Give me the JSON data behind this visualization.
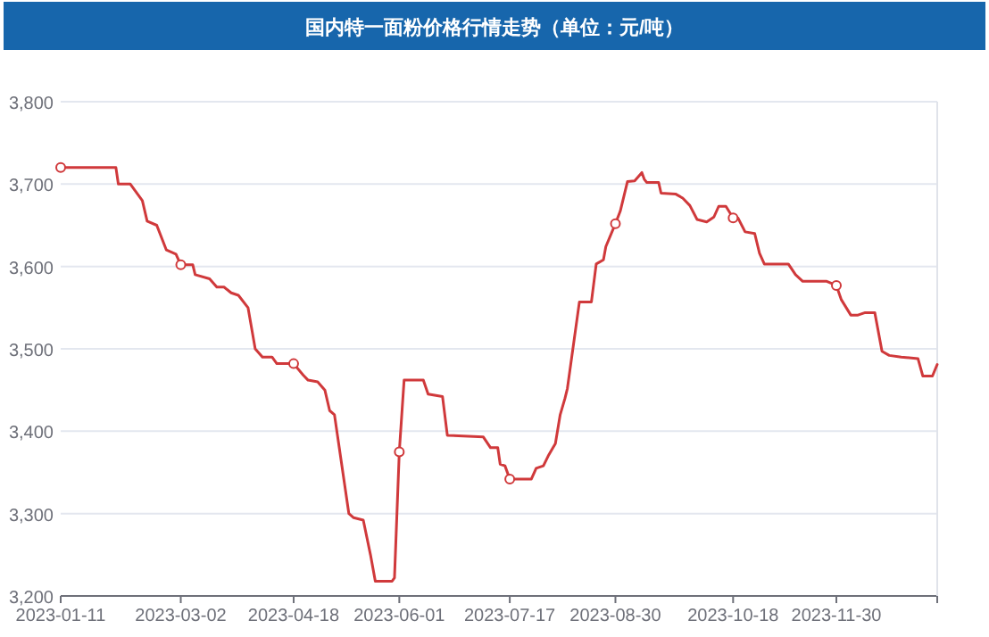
{
  "chart_data": {
    "type": "line",
    "title": "国内特一面粉价格行情走势（单位：元/吨）",
    "xlim": [
      "2023-01-11",
      "2024-01-11"
    ],
    "xticks": [
      "2023-01-11",
      "2023-03-02",
      "2023-04-18",
      "2023-06-01",
      "2023-07-17",
      "2023-08-30",
      "2023-10-18",
      "2023-11-30"
    ],
    "ylim": [
      3200,
      3800
    ],
    "yticks": [
      {
        "value": 3200,
        "label": "3,200"
      },
      {
        "value": 3300,
        "label": "3,300"
      },
      {
        "value": 3400,
        "label": "3,400"
      },
      {
        "value": 3500,
        "label": "3,500"
      },
      {
        "value": 3600,
        "label": "3,600"
      },
      {
        "value": 3700,
        "label": "3,700"
      },
      {
        "value": 3800,
        "label": "3,800"
      }
    ],
    "grid": "y",
    "series": [
      {
        "type": "line",
        "color": "#d0393b",
        "marker": "none",
        "x": [
          "2023-01-11",
          "2023-02-03",
          "2023-02-04",
          "2023-02-09",
          "2023-02-14",
          "2023-02-16",
          "2023-02-20",
          "2023-02-24",
          "2023-02-28",
          "2023-03-02",
          "2023-03-07",
          "2023-03-08",
          "2023-03-14",
          "2023-03-17",
          "2023-03-20",
          "2023-03-23",
          "2023-03-26",
          "2023-03-30",
          "2023-04-02",
          "2023-04-05",
          "2023-04-09",
          "2023-04-11",
          "2023-04-18",
          "2023-04-22",
          "2023-04-24",
          "2023-04-28",
          "2023-05-01",
          "2023-05-03",
          "2023-05-05",
          "2023-05-07",
          "2023-05-09",
          "2023-05-11",
          "2023-05-13",
          "2023-05-17",
          "2023-05-20",
          "2023-05-22",
          "2023-05-29",
          "2023-05-30",
          "2023-06-01",
          "2023-06-03",
          "2023-06-11",
          "2023-06-13",
          "2023-06-19",
          "2023-06-21",
          "2023-07-06",
          "2023-07-09",
          "2023-07-12",
          "2023-07-13",
          "2023-07-15",
          "2023-07-17",
          "2023-07-26",
          "2023-07-28",
          "2023-07-31",
          "2023-08-02",
          "2023-08-04",
          "2023-08-05",
          "2023-08-07",
          "2023-08-09",
          "2023-08-10",
          "2023-08-15",
          "2023-08-20",
          "2023-08-22",
          "2023-08-25",
          "2023-08-26",
          "2023-08-30",
          "2023-09-01",
          "2023-09-04",
          "2023-09-07",
          "2023-09-10",
          "2023-09-11",
          "2023-09-12",
          "2023-09-17",
          "2023-09-18",
          "2023-09-24",
          "2023-09-27",
          "2023-09-30",
          "2023-10-03",
          "2023-10-07",
          "2023-10-10",
          "2023-10-12",
          "2023-10-15",
          "2023-10-18",
          "2023-10-20",
          "2023-10-23",
          "2023-10-27",
          "2023-10-29",
          "2023-10-31",
          "2023-11-10",
          "2023-11-13",
          "2023-11-16",
          "2023-11-26",
          "2023-11-30",
          "2023-12-02",
          "2023-12-06",
          "2023-12-09",
          "2023-12-12",
          "2023-12-16",
          "2023-12-19",
          "2023-12-22",
          "2023-12-27",
          "2024-01-03",
          "2024-01-05",
          "2024-01-09",
          "2024-01-11"
        ],
        "values": [
          3720,
          3720,
          3700,
          3700,
          3680,
          3655,
          3650,
          3620,
          3615,
          3602,
          3602,
          3590,
          3585,
          3575,
          3575,
          3568,
          3565,
          3550,
          3500,
          3490,
          3490,
          3482,
          3482,
          3468,
          3462,
          3460,
          3450,
          3425,
          3420,
          3380,
          3340,
          3300,
          3295,
          3292,
          3250,
          3218,
          3218,
          3222,
          3375,
          3462,
          3462,
          3445,
          3442,
          3395,
          3393,
          3380,
          3380,
          3360,
          3358,
          3342,
          3342,
          3355,
          3358,
          3370,
          3380,
          3385,
          3420,
          3440,
          3452,
          3557,
          3557,
          3603,
          3608,
          3624,
          3652,
          3667,
          3703,
          3704,
          3714,
          3706,
          3702,
          3702,
          3689,
          3688,
          3683,
          3674,
          3657,
          3654,
          3660,
          3673,
          3673,
          3659,
          3659,
          3642,
          3640,
          3616,
          3603,
          3603,
          3590,
          3582,
          3582,
          3577,
          3560,
          3541,
          3541,
          3544,
          3544,
          3497,
          3492,
          3490,
          3488,
          3467,
          3467,
          3481
        ]
      },
      {
        "type": "scatter",
        "color": "#d0393b",
        "marker": "circle",
        "x": [
          "2023-01-11",
          "2023-03-02",
          "2023-04-18",
          "2023-06-01",
          "2023-07-17",
          "2023-08-30",
          "2023-10-18",
          "2023-11-30"
        ],
        "values": [
          3720,
          3602,
          3482,
          3375,
          3342,
          3652,
          3659,
          3577
        ]
      }
    ]
  }
}
